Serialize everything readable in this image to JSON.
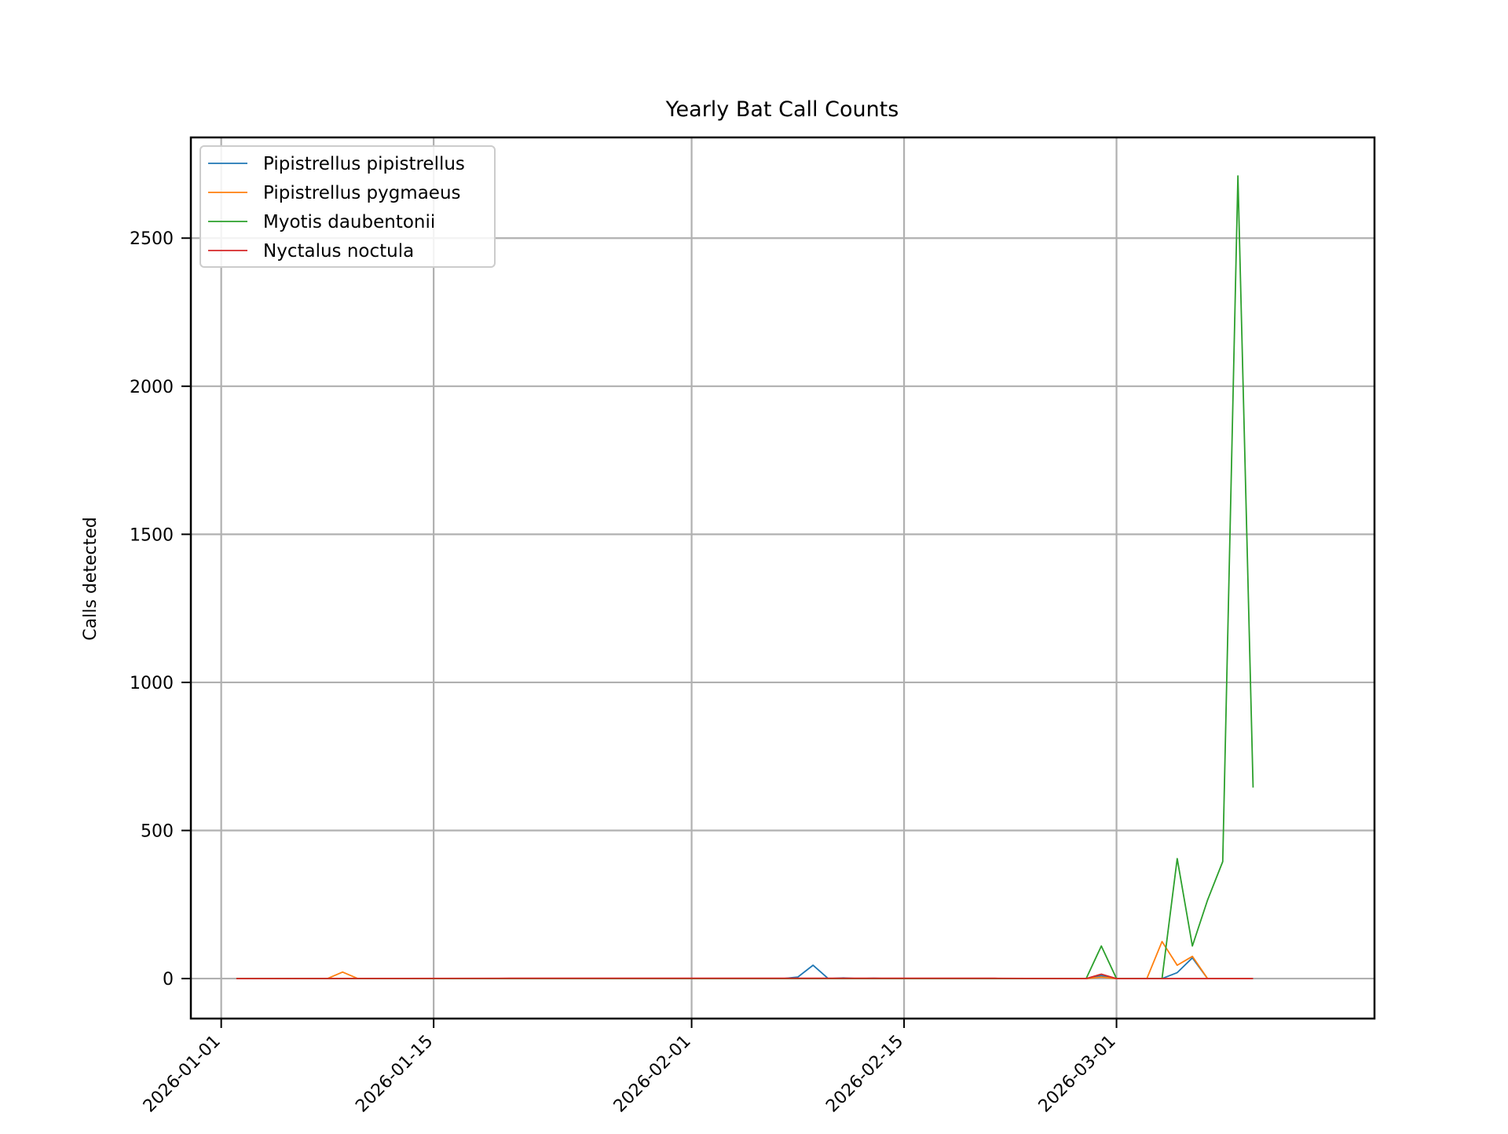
{
  "chart_data": {
    "type": "line",
    "title": "Yearly Bat Call Counts",
    "xlabel": "",
    "ylabel": "Calls detected",
    "xlim": [
      "2025-12-30",
      "2026-03-18"
    ],
    "ylim": [
      -135,
      2840
    ],
    "x_ticks": [
      "2026-01-01",
      "2026-01-15",
      "2026-02-01",
      "2026-02-15",
      "2026-03-01"
    ],
    "y_ticks": [
      0,
      500,
      1000,
      1500,
      2000,
      2500
    ],
    "grid": true,
    "legend_position": "top-left",
    "series": [
      {
        "name": "Pipistrellus pipistrellus",
        "color": "#1f77b4",
        "points": [
          [
            "2026-01-02",
            0
          ],
          [
            "2026-01-09",
            0
          ],
          [
            "2026-01-10",
            0
          ],
          [
            "2026-01-11",
            0
          ],
          [
            "2026-02-07",
            0
          ],
          [
            "2026-02-08",
            5
          ],
          [
            "2026-02-09",
            45
          ],
          [
            "2026-02-10",
            0
          ],
          [
            "2026-02-11",
            2
          ],
          [
            "2026-02-12",
            0
          ],
          [
            "2026-02-13",
            1
          ],
          [
            "2026-02-14",
            0
          ],
          [
            "2026-02-27",
            0
          ],
          [
            "2026-02-28",
            10
          ],
          [
            "2026-03-01",
            0
          ],
          [
            "2026-03-03",
            0
          ],
          [
            "2026-03-04",
            0
          ],
          [
            "2026-03-05",
            20
          ],
          [
            "2026-03-06",
            70
          ],
          [
            "2026-03-07",
            0
          ],
          [
            "2026-03-10",
            0
          ]
        ]
      },
      {
        "name": "Pipistrellus pygmaeus",
        "color": "#ff7f0e",
        "points": [
          [
            "2026-01-02",
            0
          ],
          [
            "2026-01-08",
            0
          ],
          [
            "2026-01-09",
            22
          ],
          [
            "2026-01-10",
            0
          ],
          [
            "2026-02-27",
            0
          ],
          [
            "2026-02-28",
            5
          ],
          [
            "2026-03-01",
            0
          ],
          [
            "2026-03-03",
            0
          ],
          [
            "2026-03-04",
            125
          ],
          [
            "2026-03-05",
            45
          ],
          [
            "2026-03-06",
            75
          ],
          [
            "2026-03-07",
            0
          ],
          [
            "2026-03-10",
            0
          ]
        ]
      },
      {
        "name": "Myotis daubentonii",
        "color": "#2ca02c",
        "points": [
          [
            "2026-01-02",
            0
          ],
          [
            "2026-02-27",
            0
          ],
          [
            "2026-02-28",
            110
          ],
          [
            "2026-03-01",
            0
          ],
          [
            "2026-03-04",
            0
          ],
          [
            "2026-03-05",
            405
          ],
          [
            "2026-03-06",
            110
          ],
          [
            "2026-03-07",
            265
          ],
          [
            "2026-03-08",
            395
          ],
          [
            "2026-03-09",
            2710
          ],
          [
            "2026-03-10",
            645
          ]
        ]
      },
      {
        "name": "Nyctalus noctula",
        "color": "#d62728",
        "points": [
          [
            "2026-01-02",
            0
          ],
          [
            "2026-01-20",
            1
          ],
          [
            "2026-02-04",
            1
          ],
          [
            "2026-02-19",
            1
          ],
          [
            "2026-02-21",
            1
          ],
          [
            "2026-02-27",
            0
          ],
          [
            "2026-02-28",
            15
          ],
          [
            "2026-03-01",
            0
          ],
          [
            "2026-03-10",
            0
          ]
        ]
      }
    ]
  }
}
